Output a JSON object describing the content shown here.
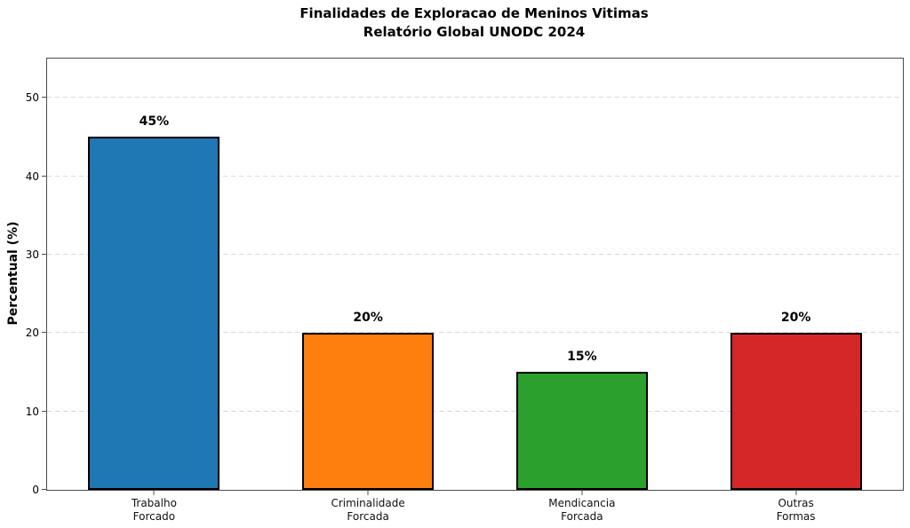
{
  "chart_data": {
    "type": "bar",
    "title": "Finalidades de Exploracao de Meninos Vitimas",
    "subtitle": "Relatório Global UNODC 2024",
    "ylabel": "Percentual (%)",
    "xlabel": "",
    "ylim": [
      0,
      55
    ],
    "yticks": [
      0,
      10,
      20,
      30,
      40,
      50
    ],
    "grid": "horizontal-dashed",
    "legend": "none",
    "categories": [
      [
        "Trabalho",
        "Forcado"
      ],
      [
        "Criminalidade",
        "Forcada"
      ],
      [
        "Mendicancia",
        "Forcada"
      ],
      [
        "Outras",
        "Formas"
      ]
    ],
    "values": [
      45,
      20,
      15,
      20
    ],
    "value_labels": [
      "45%",
      "20%",
      "15%",
      "20%"
    ],
    "bar_colors": [
      "#1f77b4",
      "#ff7f0e",
      "#2ca02c",
      "#d62728"
    ],
    "bar_edge_color": "#000000",
    "grid_color": "#d9d9d9",
    "spine_color": "#4d4d4d"
  }
}
